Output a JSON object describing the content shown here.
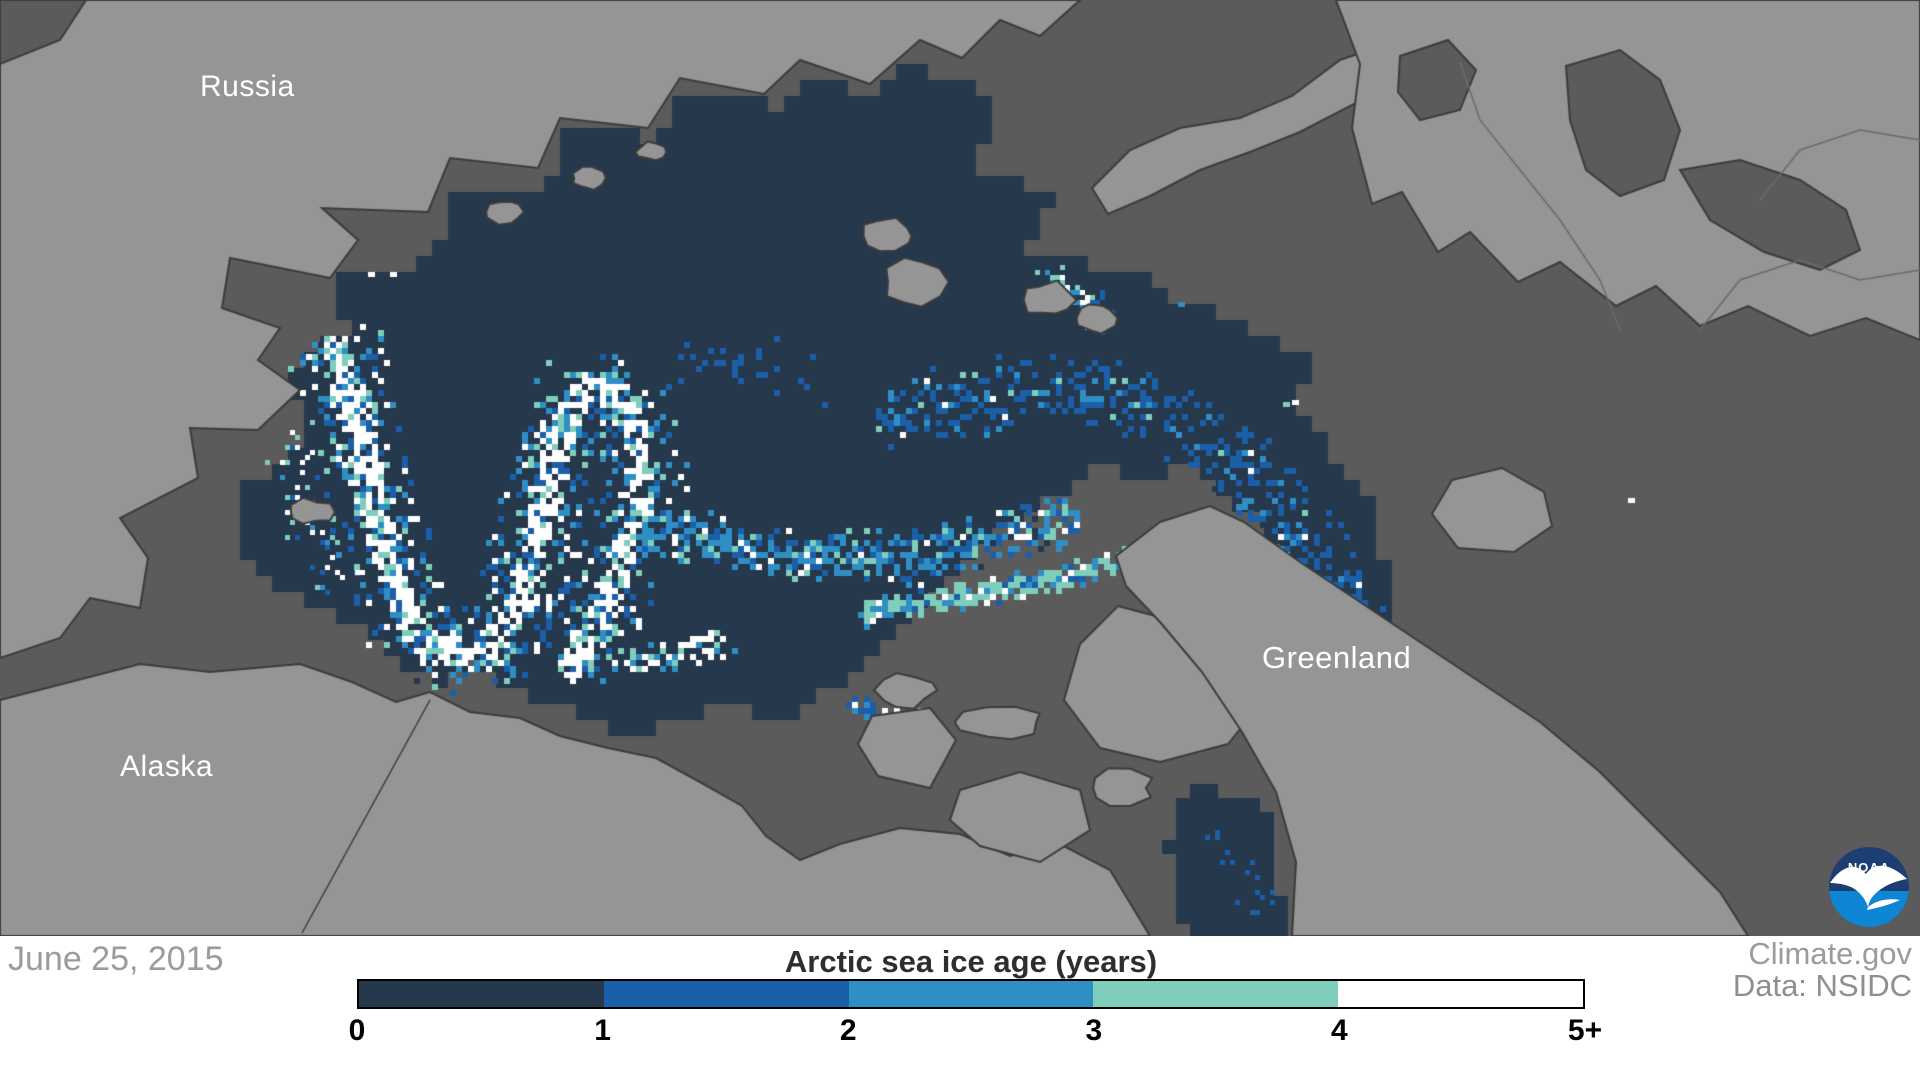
{
  "map": {
    "region_labels": [
      {
        "id": "russia",
        "text": "Russia"
      },
      {
        "id": "alaska",
        "text": "Alaska"
      },
      {
        "id": "greenland",
        "text": "Greenland"
      }
    ],
    "palette": {
      "ocean": "#5B5B5B",
      "land": "#959595",
      "coast": "#3C3C3C",
      "border": "#6B6B6B",
      "ice_0_1": "#25384C",
      "ice_1_2": "#1C5FA9",
      "ice_2_3": "#2F8FC5",
      "ice_3_4": "#7FCEBC",
      "ice_5_plus": "#FFFFFF"
    }
  },
  "footer": {
    "date": "June 25, 2015",
    "legend_title": "Arctic sea ice age (years)",
    "ticks": [
      "0",
      "1",
      "2",
      "3",
      "4",
      "5+"
    ],
    "segments": [
      {
        "range": "0-1",
        "color": "#25384C"
      },
      {
        "range": "1-2",
        "color": "#1C5FA9"
      },
      {
        "range": "2-3",
        "color": "#2F8FC5"
      },
      {
        "range": "3-4",
        "color": "#7FCEBC"
      },
      {
        "range": "4-5+",
        "color": "#FFFFFF"
      }
    ],
    "credit_source": "Climate.gov",
    "credit_data": "Data: NSIDC"
  },
  "logo": {
    "label": "NOAA",
    "dark_blue": "#1C3E73",
    "light_blue": "#0F86D3",
    "gull": "#FFFFFF"
  }
}
